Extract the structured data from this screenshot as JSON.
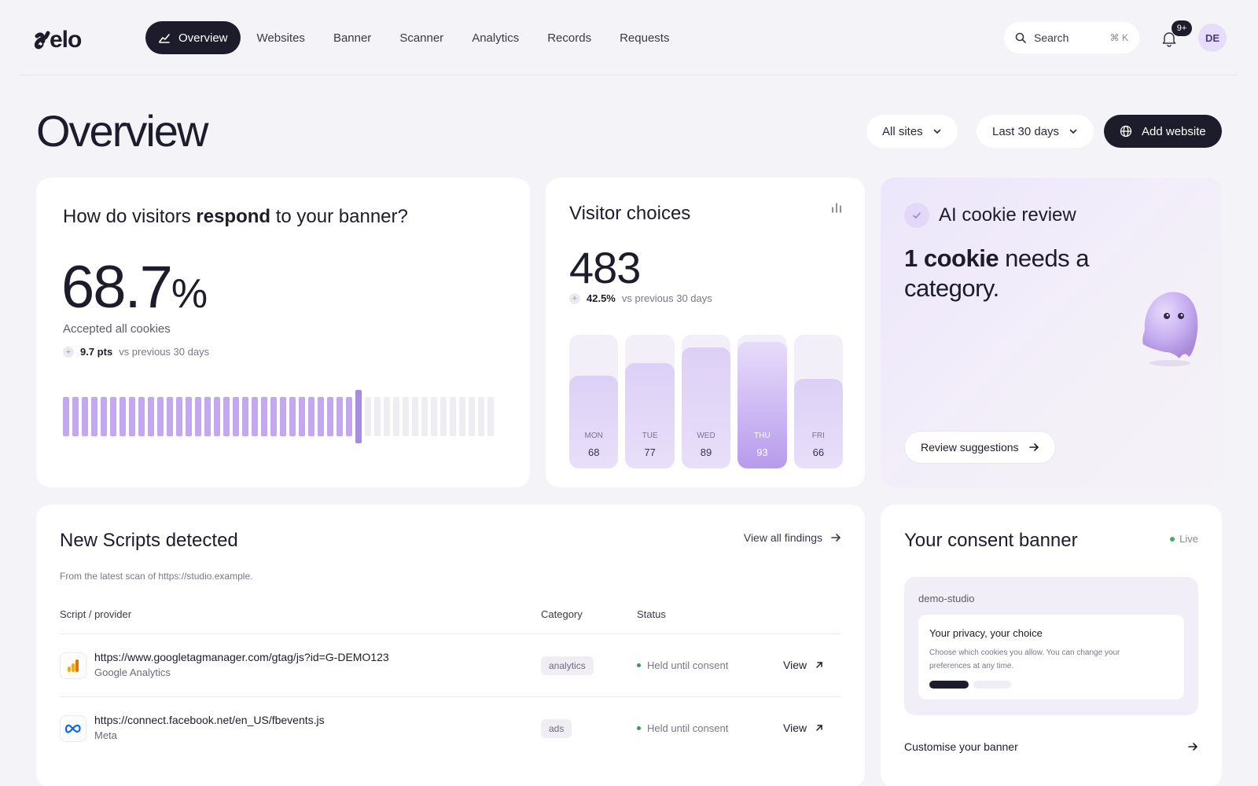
{
  "brand": {
    "logo_text": "velo"
  },
  "nav": {
    "items": [
      {
        "label": "Overview",
        "active": true
      },
      {
        "label": "Websites"
      },
      {
        "label": "Banner"
      },
      {
        "label": "Scanner"
      },
      {
        "label": "Analytics"
      },
      {
        "label": "Records"
      },
      {
        "label": "Requests"
      }
    ]
  },
  "search": {
    "label": "Search",
    "shortcut": "⌘ K"
  },
  "notifications": {
    "badge": "9+"
  },
  "user": {
    "initials": "DE"
  },
  "header": {
    "title": "Overview",
    "sites_filter": "All sites",
    "date_filter": "Last 30 days",
    "add_button": "Add website"
  },
  "response_card": {
    "title_pre": "How do visitors ",
    "title_bold": "respond",
    "title_post": " to your banner?",
    "value": "68.7",
    "unit": "%",
    "label": "Accepted all cookies",
    "delta_value": "9.7 pts",
    "delta_label": "vs previous 30 days",
    "accepted_fraction": 0.687
  },
  "choices_card": {
    "title": "Visitor choices",
    "total": "483",
    "delta_value": "42.5%",
    "delta_label": "vs previous 30 days",
    "days": [
      {
        "day": "MON",
        "value": 68
      },
      {
        "day": "TUE",
        "value": 77
      },
      {
        "day": "WED",
        "value": 89
      },
      {
        "day": "THU",
        "value": 93,
        "highlight": true
      },
      {
        "day": "FRI",
        "value": 66
      }
    ]
  },
  "ai_card": {
    "title": "AI cookie review",
    "msg_bold": "1 cookie",
    "msg_rest": " needs a category.",
    "button": "Review suggestions"
  },
  "scripts_card": {
    "title": "New Scripts detected",
    "view_all": "View all findings",
    "note": "From the latest scan of https://studio.example.",
    "columns": {
      "script": "Script / provider",
      "category": "Category",
      "status": "Status"
    },
    "rows": [
      {
        "url": "https://www.googletagmanager.com/gtag/js?id=G-DEMO123",
        "provider": "Google Analytics",
        "category": "analytics",
        "status": "Held until consent",
        "action": "View"
      },
      {
        "url": "https://connect.facebook.net/en_US/fbevents.js",
        "provider": "Meta",
        "category": "ads",
        "status": "Held until consent",
        "action": "View"
      }
    ]
  },
  "banner_card": {
    "title": "Your consent banner",
    "live": "Live",
    "site": "demo-studio",
    "preview_title": "Your privacy, your choice",
    "preview_text": "Choose which cookies you allow. You can change your preferences at any time.",
    "customise": "Customise your banner"
  },
  "colors": {
    "accent": "#c4a8ef",
    "dark": "#1d1c2b",
    "background": "#f4f3f8",
    "live_dot": "#3fae63"
  }
}
